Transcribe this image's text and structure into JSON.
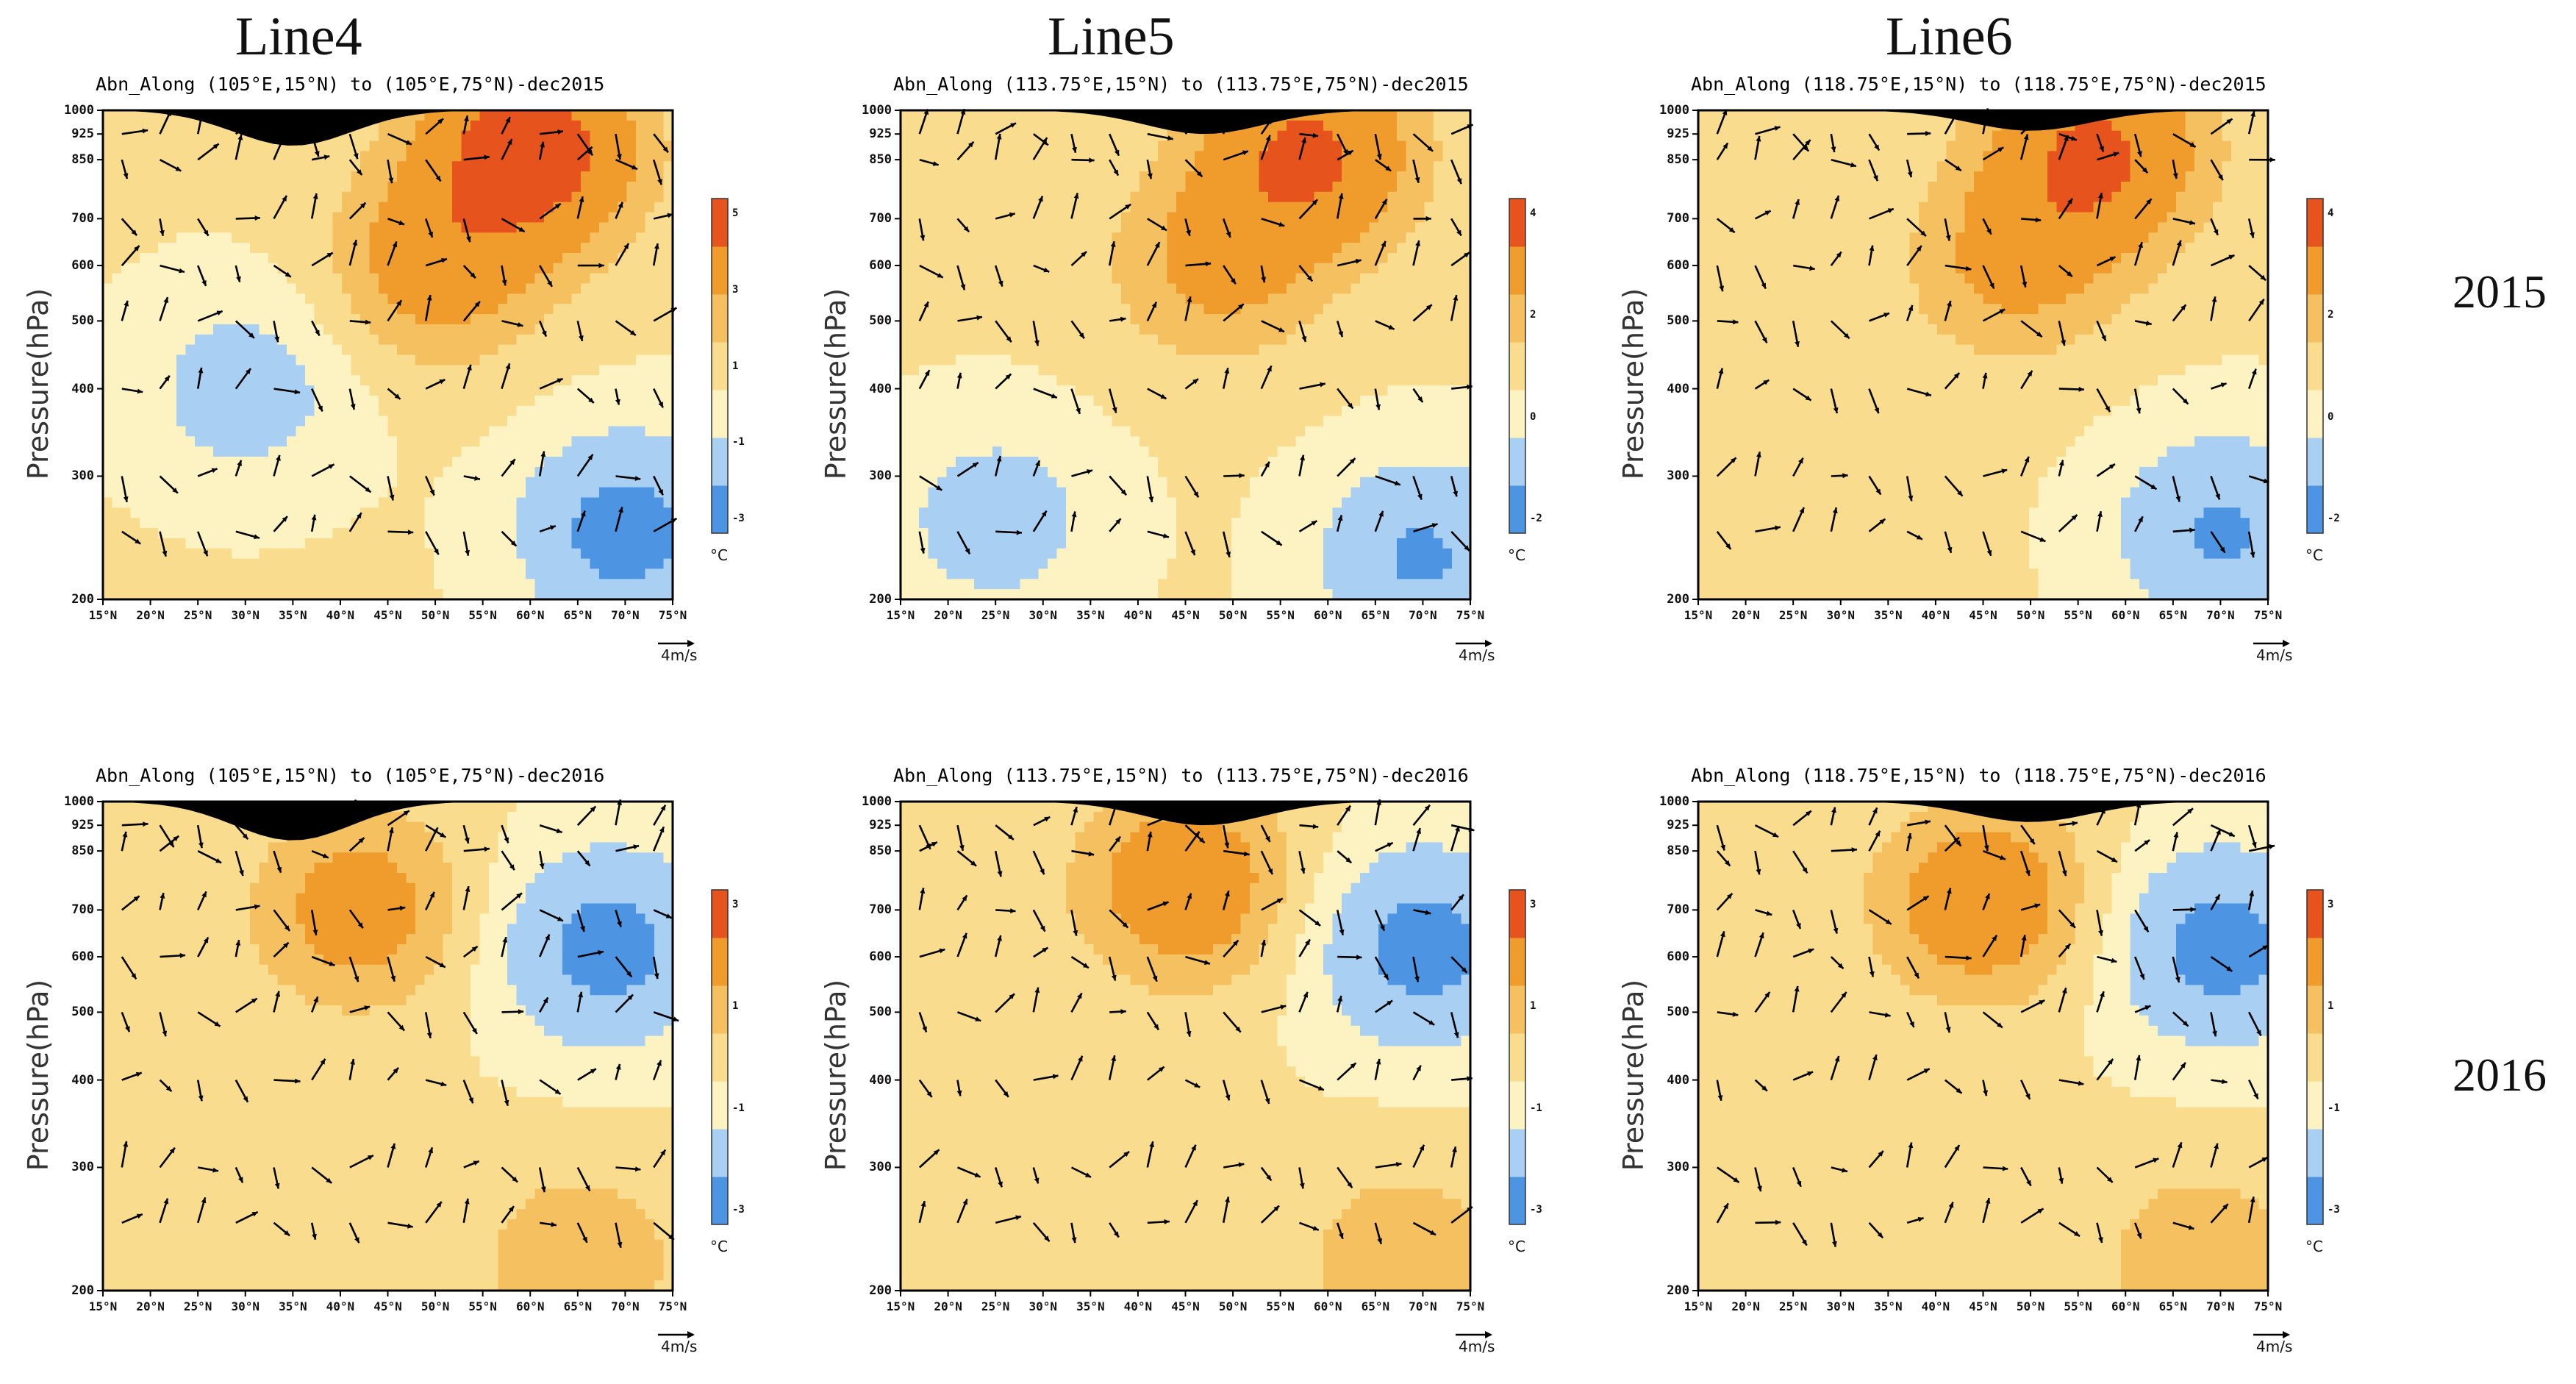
{
  "column_titles": [
    "Line4",
    "Line5",
    "Line6"
  ],
  "row_labels": [
    "2015",
    "2016"
  ],
  "colors": {
    "blue_dark": "#4d95e3",
    "blue_light": "#a9d0f2",
    "yellow_light": "#fdf3c2",
    "yellow": "#f9dc8e",
    "orange_light": "#f5c060",
    "orange": "#ef9c2c",
    "red": "#e6531d",
    "terrain": "#000000",
    "missing": "#ffffff"
  },
  "chart_data": [
    {
      "type": "heatmap",
      "title": "Abn_Along (105°E,15°N) to (105°E,75°N)-dec2015",
      "column": "Line4",
      "year": "2015",
      "xlabel": "",
      "ylabel": "Pressure(hPa)",
      "x_tick_labels": [
        "15°N",
        "20°N",
        "25°N",
        "30°N",
        "35°N",
        "40°N",
        "45°N",
        "50°N",
        "55°N",
        "60°N",
        "65°N",
        "70°N",
        "75°N"
      ],
      "y_tick_labels": [
        "200",
        "300",
        "400",
        "500",
        "600",
        "700",
        "850",
        "925",
        "1000"
      ],
      "xlim": [
        15,
        75
      ],
      "ylim": [
        1000,
        200
      ],
      "colorbar": {
        "ticks": [
          "5",
          "3",
          "1",
          "-1",
          "-3"
        ],
        "unit": "°C",
        "range": [
          -4,
          6
        ]
      },
      "vector_reference": "4m/s",
      "anomaly_centers": [
        {
          "lat": 60,
          "p": 880,
          "value": 5.5
        },
        {
          "lat": 50,
          "p": 600,
          "value": 3.0
        },
        {
          "lat": 30,
          "p": 400,
          "value": -1.5
        },
        {
          "lat": 70,
          "p": 250,
          "value": -3.0
        }
      ],
      "terrain_peak_lat": 35,
      "terrain_peak_p": 890
    },
    {
      "type": "heatmap",
      "title": "Abn_Along (113.75°E,15°N) to (113.75°E,75°N)-dec2015",
      "column": "Line5",
      "year": "2015",
      "xlabel": "",
      "ylabel": "Pressure(hPa)",
      "x_tick_labels": [
        "15°N",
        "20°N",
        "25°N",
        "30°N",
        "35°N",
        "40°N",
        "45°N",
        "50°N",
        "55°N",
        "60°N",
        "65°N",
        "70°N",
        "75°N"
      ],
      "y_tick_labels": [
        "200",
        "300",
        "400",
        "500",
        "600",
        "700",
        "850",
        "925",
        "1000"
      ],
      "xlim": [
        15,
        75
      ],
      "ylim": [
        1000,
        200
      ],
      "colorbar": {
        "ticks": [
          "4",
          "2",
          "0",
          "-2"
        ],
        "unit": "°C",
        "range": [
          -3,
          5
        ]
      },
      "vector_reference": "4m/s",
      "anomaly_centers": [
        {
          "lat": 58,
          "p": 870,
          "value": 4.5
        },
        {
          "lat": 48,
          "p": 600,
          "value": 2.5
        },
        {
          "lat": 25,
          "p": 260,
          "value": -1.5
        },
        {
          "lat": 70,
          "p": 230,
          "value": -2.5
        }
      ],
      "terrain_peak_lat": 47,
      "terrain_peak_p": 925
    },
    {
      "type": "heatmap",
      "title": "Abn_Along (118.75°E,15°N) to (118.75°E,75°N)-dec2015",
      "column": "Line6",
      "year": "2015",
      "xlabel": "",
      "ylabel": "Pressure(hPa)",
      "x_tick_labels": [
        "15°N",
        "20°N",
        "25°N",
        "30°N",
        "35°N",
        "40°N",
        "45°N",
        "50°N",
        "55°N",
        "60°N",
        "65°N",
        "70°N",
        "75°N"
      ],
      "y_tick_labels": [
        "200",
        "300",
        "400",
        "500",
        "600",
        "700",
        "850",
        "925",
        "1000"
      ],
      "xlim": [
        15,
        75
      ],
      "ylim": [
        1000,
        200
      ],
      "colorbar": {
        "ticks": [
          "4",
          "2",
          "0",
          "-2"
        ],
        "unit": "°C",
        "range": [
          -3,
          5
        ]
      },
      "vector_reference": "4m/s",
      "anomaly_centers": [
        {
          "lat": 57,
          "p": 870,
          "value": 4.5
        },
        {
          "lat": 48,
          "p": 600,
          "value": 2.5
        },
        {
          "lat": 70,
          "p": 250,
          "value": -2.5
        }
      ],
      "terrain_peak_lat": 50,
      "terrain_peak_p": 935
    },
    {
      "type": "heatmap",
      "title": "Abn_Along (105°E,15°N) to (105°E,75°N)-dec2016",
      "column": "Line4",
      "year": "2016",
      "xlabel": "",
      "ylabel": "Pressure(hPa)",
      "x_tick_labels": [
        "15°N",
        "20°N",
        "25°N",
        "30°N",
        "35°N",
        "40°N",
        "45°N",
        "50°N",
        "55°N",
        "60°N",
        "65°N",
        "70°N",
        "75°N"
      ],
      "y_tick_labels": [
        "200",
        "300",
        "400",
        "500",
        "600",
        "700",
        "850",
        "925",
        "1000"
      ],
      "xlim": [
        15,
        75
      ],
      "ylim": [
        1000,
        200
      ],
      "colorbar": {
        "ticks": [
          "3",
          "1",
          "-1",
          "-3"
        ],
        "unit": "°C",
        "range": [
          -4,
          4
        ]
      },
      "vector_reference": "4m/s",
      "anomaly_centers": [
        {
          "lat": 42,
          "p": 700,
          "value": 3.0
        },
        {
          "lat": 68,
          "p": 620,
          "value": -3.0
        },
        {
          "lat": 65,
          "p": 220,
          "value": 2.0
        }
      ],
      "terrain_peak_lat": 35,
      "terrain_peak_p": 880
    },
    {
      "type": "heatmap",
      "title": "Abn_Along (113.75°E,15°N) to (113.75°E,75°N)-dec2016",
      "column": "Line5",
      "year": "2016",
      "xlabel": "",
      "ylabel": "Pressure(hPa)",
      "x_tick_labels": [
        "15°N",
        "20°N",
        "25°N",
        "30°N",
        "35°N",
        "40°N",
        "45°N",
        "50°N",
        "55°N",
        "60°N",
        "65°N",
        "70°N",
        "75°N"
      ],
      "y_tick_labels": [
        "200",
        "300",
        "400",
        "500",
        "600",
        "700",
        "850",
        "925",
        "1000"
      ],
      "xlim": [
        15,
        75
      ],
      "ylim": [
        1000,
        200
      ],
      "colorbar": {
        "ticks": [
          "3",
          "1",
          "-1",
          "-3"
        ],
        "unit": "°C",
        "range": [
          -4,
          4
        ]
      },
      "vector_reference": "4m/s",
      "anomaly_centers": [
        {
          "lat": 45,
          "p": 760,
          "value": 3.5
        },
        {
          "lat": 70,
          "p": 620,
          "value": -3.0
        },
        {
          "lat": 68,
          "p": 220,
          "value": 2.0
        }
      ],
      "terrain_peak_lat": 47,
      "terrain_peak_p": 925
    },
    {
      "type": "heatmap",
      "title": "Abn_Along (118.75°E,15°N) to (118.75°E,75°N)-dec2016",
      "column": "Line6",
      "year": "2016",
      "xlabel": "",
      "ylabel": "Pressure(hPa)",
      "x_tick_labels": [
        "15°N",
        "20°N",
        "25°N",
        "30°N",
        "35°N",
        "40°N",
        "45°N",
        "50°N",
        "55°N",
        "60°N",
        "65°N",
        "70°N",
        "75°N"
      ],
      "y_tick_labels": [
        "200",
        "300",
        "400",
        "500",
        "600",
        "700",
        "850",
        "925",
        "1000"
      ],
      "xlim": [
        15,
        75
      ],
      "ylim": [
        1000,
        200
      ],
      "colorbar": {
        "ticks": [
          "3",
          "1",
          "-1",
          "-3"
        ],
        "unit": "°C",
        "range": [
          -4,
          4
        ]
      },
      "vector_reference": "4m/s",
      "anomaly_centers": [
        {
          "lat": 45,
          "p": 720,
          "value": 3.5
        },
        {
          "lat": 70,
          "p": 620,
          "value": -3.0
        },
        {
          "lat": 68,
          "p": 220,
          "value": 2.0
        }
      ],
      "terrain_peak_lat": 50,
      "terrain_peak_p": 935
    }
  ]
}
